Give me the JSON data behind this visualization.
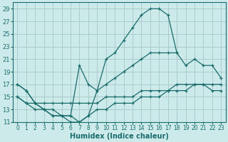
{
  "xlabel": "Humidex (Indice chaleur)",
  "bg_color": "#cceaea",
  "grid_color": "#aacccc",
  "line_color": "#1a6b6b",
  "xlim": [
    -0.5,
    23.5
  ],
  "ylim": [
    11,
    30
  ],
  "xticks": [
    0,
    1,
    2,
    3,
    4,
    5,
    6,
    7,
    8,
    9,
    10,
    11,
    12,
    13,
    14,
    15,
    16,
    17,
    18,
    19,
    20,
    21,
    22,
    23
  ],
  "yticks": [
    11,
    13,
    15,
    17,
    19,
    21,
    23,
    25,
    27,
    29
  ],
  "series": [
    {
      "x": [
        0,
        1,
        2,
        3,
        4,
        5,
        6,
        7,
        8,
        9,
        10,
        11,
        12,
        13,
        14,
        15,
        16,
        17,
        18
      ],
      "y": [
        17,
        16,
        14,
        13,
        12,
        12,
        11,
        11,
        12,
        16,
        21,
        22,
        24,
        26,
        28,
        29,
        29,
        28,
        22
      ]
    },
    {
      "x": [
        0,
        1,
        2,
        3,
        4,
        5,
        6,
        7,
        8,
        9,
        10,
        11,
        12,
        13,
        14,
        15,
        16,
        17,
        18,
        19,
        20,
        21,
        22,
        23
      ],
      "y": [
        17,
        16,
        14,
        13,
        13,
        12,
        12,
        20,
        17,
        16,
        17,
        18,
        19,
        20,
        21,
        22,
        22,
        22,
        22,
        20,
        21,
        20,
        20,
        18
      ]
    },
    {
      "x": [
        0,
        1,
        2,
        3,
        4,
        5,
        6,
        7,
        8,
        9,
        10,
        11,
        12,
        13,
        14,
        15,
        16,
        17,
        18,
        19,
        20,
        21,
        22,
        23
      ],
      "y": [
        15,
        14,
        14,
        14,
        14,
        14,
        14,
        14,
        14,
        14,
        15,
        15,
        15,
        15,
        16,
        16,
        16,
        16,
        17,
        17,
        17,
        17,
        17,
        17
      ]
    },
    {
      "x": [
        0,
        1,
        2,
        3,
        4,
        5,
        6,
        7,
        8,
        9,
        10,
        11,
        12,
        13,
        14,
        15,
        16,
        17,
        18,
        19,
        20,
        21,
        22,
        23
      ],
      "y": [
        15,
        14,
        13,
        13,
        12,
        12,
        12,
        11,
        12,
        13,
        13,
        14,
        14,
        14,
        15,
        15,
        15,
        16,
        16,
        16,
        17,
        17,
        16,
        16
      ]
    }
  ]
}
